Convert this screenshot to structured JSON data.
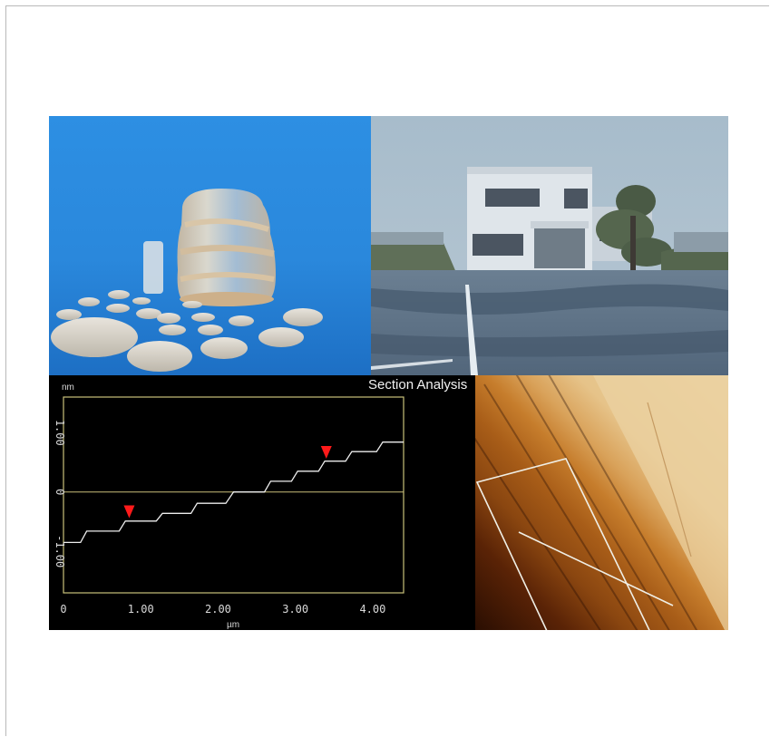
{
  "section_analysis": {
    "title": "Section Analysis",
    "y_unit": "nm",
    "x_unit": "µm",
    "x_ticks": [
      "0",
      "1.00",
      "2.00",
      "3.00",
      "4.00"
    ],
    "y_ticks": [
      "1.00",
      "0",
      "-1.00"
    ]
  },
  "chart_data": {
    "type": "line",
    "title": "Section Analysis",
    "xlabel": "µm",
    "ylabel": "nm",
    "xlim": [
      0,
      4.4
    ],
    "ylim": [
      -1.7,
      1.6
    ],
    "grid": false,
    "markers": [
      {
        "x": 0.85,
        "y": -0.5
      },
      {
        "x": 3.4,
        "y": 0.5
      }
    ],
    "series": [
      {
        "values": [
          {
            "x": 0.0,
            "y": -0.85
          },
          {
            "x": 0.22,
            "y": -0.85
          },
          {
            "x": 0.3,
            "y": -0.66
          },
          {
            "x": 0.72,
            "y": -0.66
          },
          {
            "x": 0.8,
            "y": -0.49
          },
          {
            "x": 1.2,
            "y": -0.49
          },
          {
            "x": 1.28,
            "y": -0.36
          },
          {
            "x": 1.65,
            "y": -0.36
          },
          {
            "x": 1.73,
            "y": -0.19
          },
          {
            "x": 2.1,
            "y": -0.19
          },
          {
            "x": 2.2,
            "y": 0.0
          },
          {
            "x": 2.6,
            "y": 0.0
          },
          {
            "x": 2.68,
            "y": 0.18
          },
          {
            "x": 2.95,
            "y": 0.18
          },
          {
            "x": 3.03,
            "y": 0.35
          },
          {
            "x": 3.3,
            "y": 0.35
          },
          {
            "x": 3.38,
            "y": 0.52
          },
          {
            "x": 3.65,
            "y": 0.52
          },
          {
            "x": 3.73,
            "y": 0.68
          },
          {
            "x": 4.05,
            "y": 0.68
          },
          {
            "x": 4.13,
            "y": 0.84
          },
          {
            "x": 4.4,
            "y": 0.84
          }
        ]
      }
    ]
  }
}
